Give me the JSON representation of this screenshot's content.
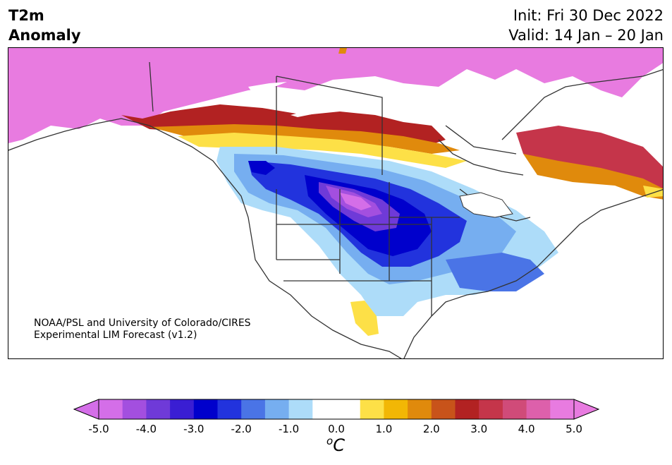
{
  "title": {
    "line1": "T2m",
    "line2": "Anomaly"
  },
  "dates": {
    "init": "Init: Fri 30 Dec 2022",
    "valid": "Valid: 14 Jan – 20 Jan"
  },
  "credit": {
    "line1": "NOAA/PSL and University of Colorado/CIRES",
    "line2": "Experimental LIM Forecast (v1.2)"
  },
  "colorbar": {
    "ticks": [
      "-5.0",
      "-4.0",
      "-3.0",
      "-2.0",
      "-1.0",
      "0.0",
      "1.0",
      "2.0",
      "3.0",
      "4.0",
      "5.0"
    ],
    "unit_sup": "o",
    "unit": "C",
    "colors": [
      "#d46ee8",
      "#a34fdf",
      "#6f3ad8",
      "#3a1ed3",
      "#0000cc",
      "#2233dd",
      "#4a74e6",
      "#76aef0",
      "#addcf9",
      "#ffffff",
      "#ffffff",
      "#fde047",
      "#f2b705",
      "#e08a0c",
      "#c8531a",
      "#b22222",
      "#c5354a",
      "#d04b79",
      "#dd60ab",
      "#e87be0"
    ],
    "under_color": "#d46ee8",
    "over_color": "#e87be0"
  }
}
